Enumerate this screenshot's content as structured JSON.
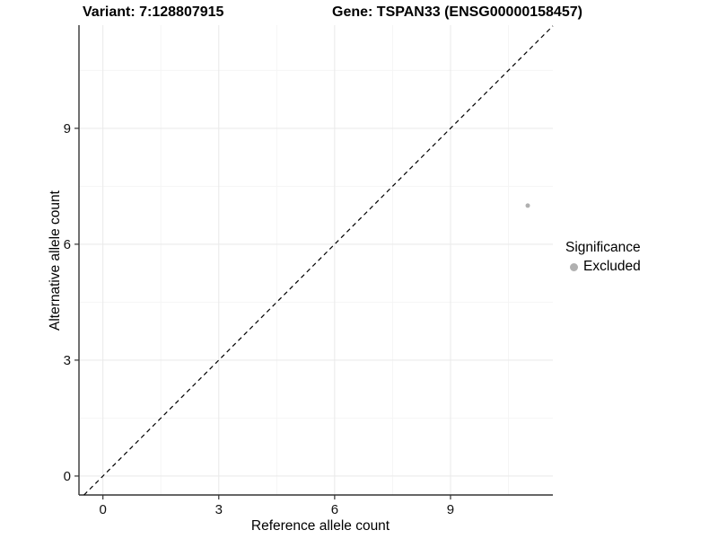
{
  "chart_data": {
    "type": "scatter",
    "titles": {
      "left": "Variant: 7:128807915",
      "right": "Gene: TSPAN33 (ENSG00000158457)"
    },
    "xlabel": "Reference allele count",
    "ylabel": "Alternative allele count",
    "xlim": [
      -0.62,
      11.65
    ],
    "ylim": [
      -0.49,
      11.67
    ],
    "x_ticks": [
      0,
      3,
      6,
      9
    ],
    "y_ticks": [
      0,
      3,
      6,
      9
    ],
    "x_minor_ticks": [
      1.5,
      4.5,
      7.5,
      10.5
    ],
    "y_minor_ticks": [
      1.5,
      4.5,
      7.5,
      10.5
    ],
    "grid": true,
    "reference_line": {
      "type": "identity",
      "slope": 1,
      "intercept": 0,
      "style": "dashed",
      "color": "#000000"
    },
    "series": [
      {
        "name": "Excluded",
        "color": "#b0b0b0",
        "points": [
          {
            "x": 11,
            "y": 7
          }
        ]
      }
    ],
    "legend": {
      "title": "Significance",
      "position": "right",
      "items": [
        {
          "label": "Excluded",
          "color": "#b0b0b0"
        }
      ]
    },
    "colors": {
      "axis": "#333333",
      "tick_text": "#111111",
      "grid_major": "#e9e9e9",
      "grid_minor": "#f5f5f5",
      "background": "#ffffff"
    }
  }
}
